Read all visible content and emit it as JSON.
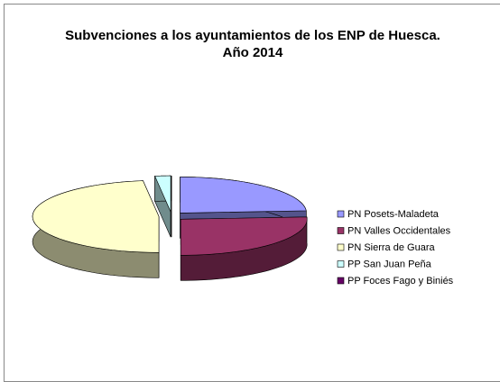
{
  "chart_data": {
    "type": "pie3d",
    "title": "Subvenciones a los ayuntamientos de los ENP de Huesca. Año 2014",
    "categories": [
      "PN Posets-Maladeta",
      "PN Valles Occidentales",
      "PN Sierra de Guara",
      "PP San Juan Peña",
      "PP Foces Fago y Biniés"
    ],
    "values": [
      24,
      26,
      48,
      2,
      0
    ],
    "colors": [
      "#9999ff",
      "#993366",
      "#ffffcc",
      "#ccffff",
      "#660066"
    ],
    "legend": "right"
  }
}
